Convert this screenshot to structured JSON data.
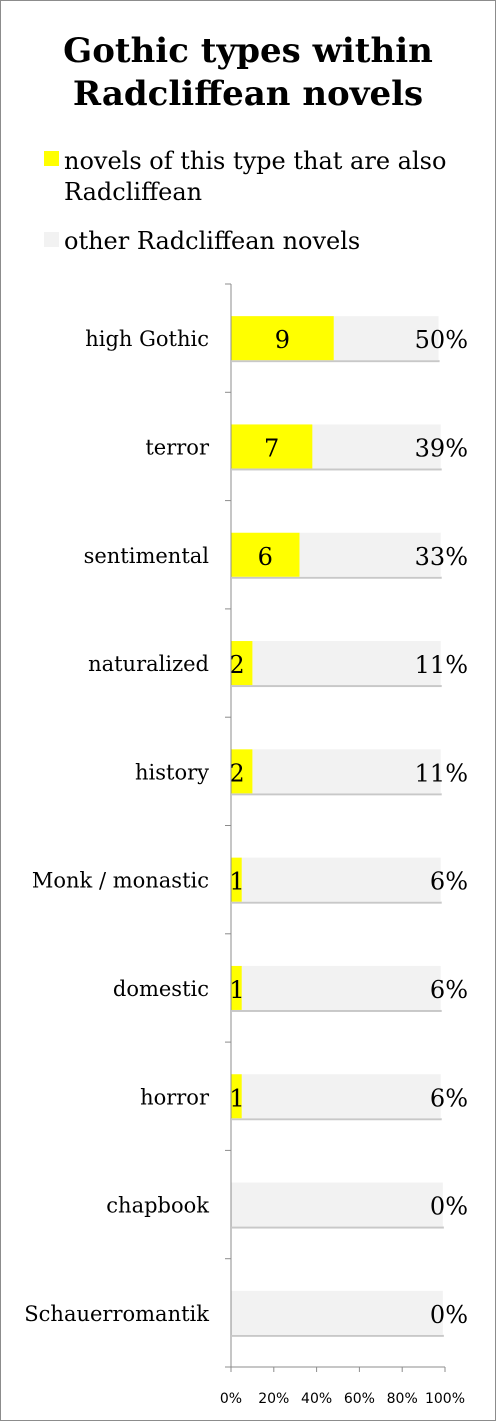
{
  "title": [
    "Gothic types within",
    "Radcliffean novels"
  ],
  "legend": [
    {
      "label": "novels of this type that are also",
      "label2": "Radcliffean",
      "color": "#ffff00"
    },
    {
      "label": "other Radcliffean novels",
      "color": "#f2f2f2"
    }
  ],
  "chart_data": {
    "type": "bar",
    "orientation": "horizontal",
    "stacked": "100%",
    "categories": [
      "high Gothic",
      "terror",
      "sentimental",
      "naturalized",
      "history",
      "Monk / monastic",
      "domestic",
      "horror",
      "chapbook",
      "Schauerromantik"
    ],
    "series": [
      {
        "name": "novels of this type that are also Radcliffean",
        "values": [
          9,
          7,
          6,
          2,
          2,
          1,
          1,
          1,
          0,
          0
        ],
        "color": "#ffff00"
      },
      {
        "name": "other Radcliffean novels",
        "color": "#f2f2f2"
      }
    ],
    "percent_labels": [
      "50%",
      "39%",
      "33%",
      "11%",
      "11%",
      "6%",
      "6%",
      "6%",
      "0%",
      "0%"
    ],
    "yellow_fractions": [
      0.48,
      0.38,
      0.32,
      0.1,
      0.1,
      0.05,
      0.05,
      0.05,
      0,
      0
    ],
    "bar_end_fractions": [
      0.97,
      0.98,
      0.98,
      0.98,
      0.98,
      0.98,
      0.98,
      0.98,
      0.99,
      0.99
    ],
    "xlim": [
      0,
      100
    ],
    "xticks": [
      "0%",
      "20%",
      "40%",
      "60%",
      "80%",
      "100%"
    ],
    "legend_position": "top",
    "grid": false
  }
}
